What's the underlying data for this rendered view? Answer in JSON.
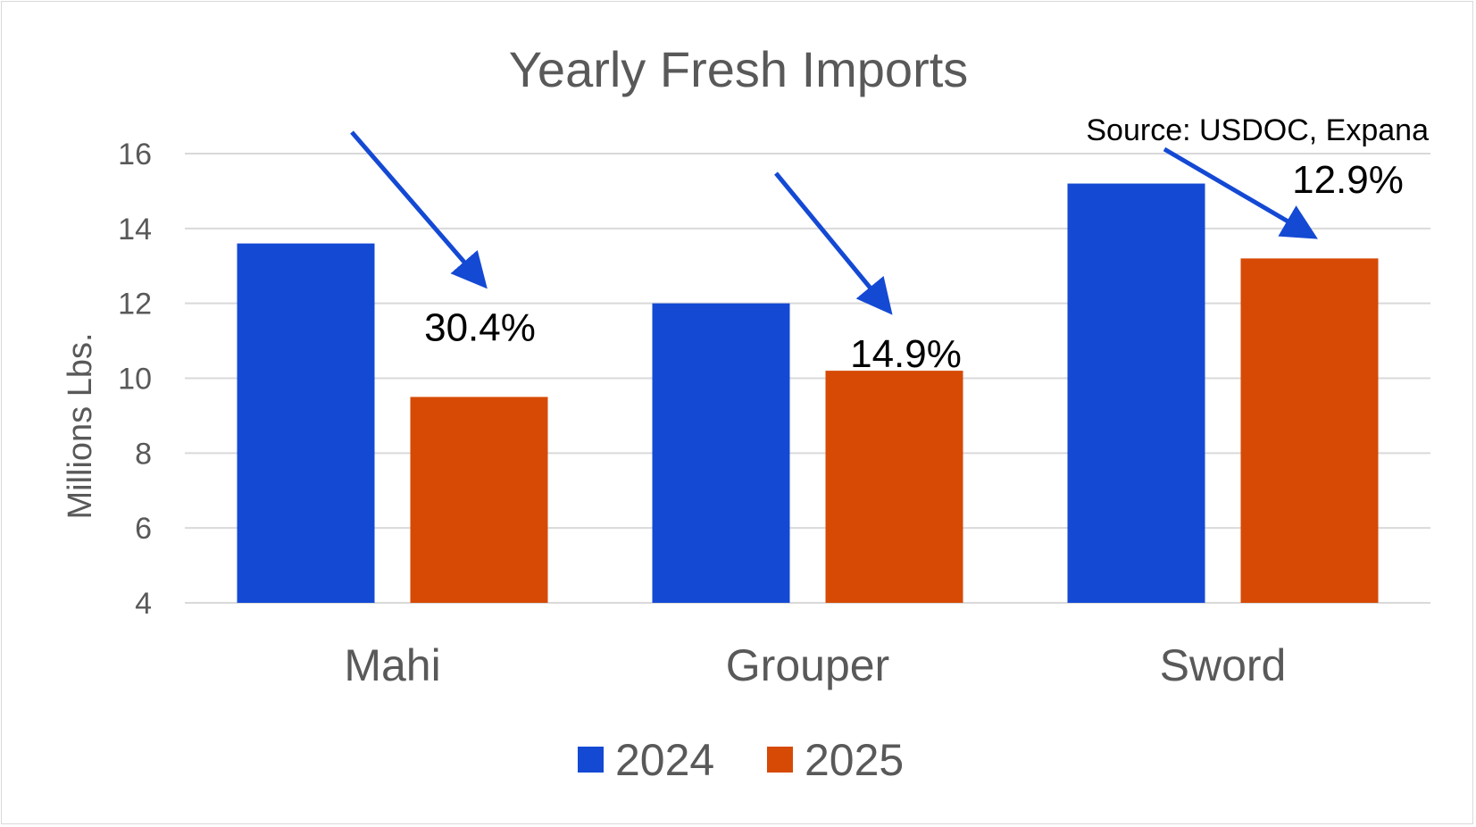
{
  "chart_data": {
    "type": "bar",
    "title": "Yearly Fresh Imports",
    "ylabel": "Millions Lbs.",
    "xlabel": "",
    "categories": [
      "Mahi",
      "Grouper",
      "Sword"
    ],
    "series": [
      {
        "name": "2024",
        "values": [
          13.6,
          12.0,
          15.2
        ],
        "color": "#1449d4"
      },
      {
        "name": "2025",
        "values": [
          9.5,
          10.2,
          13.2
        ],
        "color": "#d64a05"
      }
    ],
    "ylim": [
      4,
      16
    ],
    "yticks": [
      4,
      6,
      8,
      10,
      12,
      14,
      16
    ],
    "grid": true,
    "legend_position": "bottom",
    "annotations": [
      "30.4%",
      "14.9%",
      "12.9%"
    ],
    "annotation_arrows_color": "#1449d4",
    "source_note": "Source: USDOC, Expana"
  }
}
